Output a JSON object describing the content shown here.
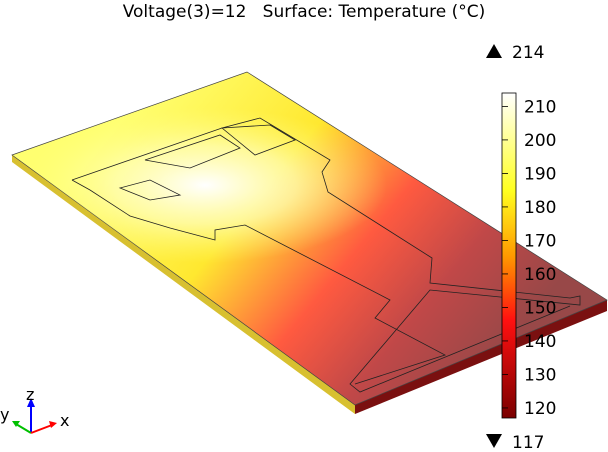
{
  "title": "Voltage(3)=12   Surface: Temperature (°C)",
  "chart_data": {
    "type": "heatmap",
    "title": "Voltage(3)=12   Surface: Temperature (°C)",
    "quantity": "Temperature",
    "unit": "°C",
    "colormap": "heat",
    "data_max": 214,
    "data_min": 117,
    "max_label": "214",
    "min_label": "117",
    "colorbar_ticks": [
      120,
      130,
      140,
      150,
      160,
      170,
      180,
      190,
      200,
      210
    ],
    "colorbar_tick_labels": [
      "120",
      "130",
      "140",
      "150",
      "160",
      "170",
      "180",
      "190",
      "200",
      "210"
    ],
    "colors": [
      "#7a0000",
      "#ff2020",
      "#ffff30",
      "#ffffff"
    ]
  },
  "axes_triad": {
    "x": "x",
    "y": "y",
    "z": "z",
    "x_color": "#ff0000",
    "y_color": "#00c000",
    "z_color": "#0000ff"
  }
}
